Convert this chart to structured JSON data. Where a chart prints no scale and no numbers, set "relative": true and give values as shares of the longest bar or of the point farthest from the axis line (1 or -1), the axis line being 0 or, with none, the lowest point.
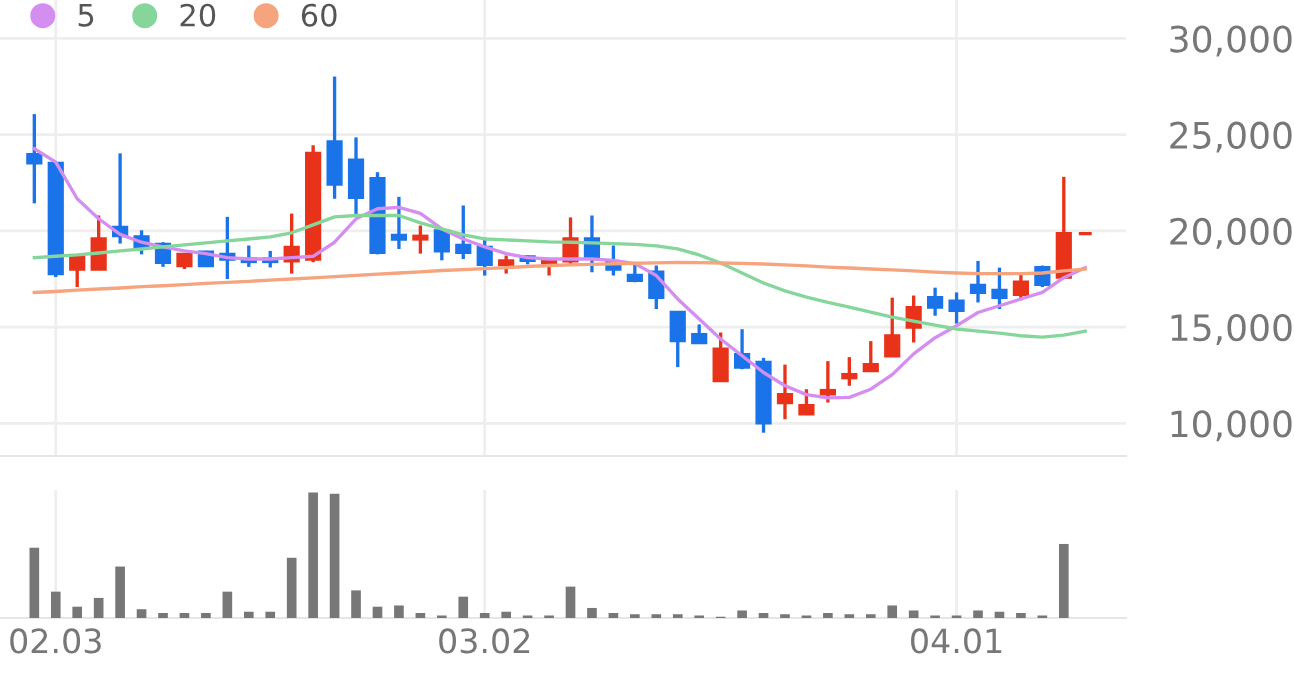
{
  "chart_data": [
    {
      "type": "candlestick",
      "categories": [
        null,
        "02.03",
        null,
        null,
        null,
        null,
        null,
        null,
        null,
        null,
        null,
        null,
        null,
        null,
        null,
        null,
        null,
        null,
        null,
        null,
        null,
        "03.02",
        null,
        null,
        null,
        null,
        null,
        null,
        null,
        null,
        null,
        null,
        null,
        null,
        null,
        null,
        null,
        null,
        null,
        null,
        null,
        null,
        null,
        "04.01",
        null,
        null,
        null,
        null,
        null,
        null
      ],
      "ohlc": [
        [
          23960,
          26070,
          21430,
          23540
        ],
        [
          23510,
          23570,
          17600,
          17780
        ],
        [
          18020,
          18650,
          17080,
          18650
        ],
        [
          18020,
          20800,
          18020,
          19580
        ],
        [
          20180,
          24030,
          19340,
          19760
        ],
        [
          19690,
          20030,
          18780,
          19140
        ],
        [
          19300,
          19410,
          18130,
          18360
        ],
        [
          18200,
          18780,
          18020,
          18780
        ],
        [
          18890,
          18960,
          18130,
          18200
        ],
        [
          18780,
          20730,
          17500,
          18540
        ],
        [
          18540,
          19240,
          18130,
          18410
        ],
        [
          18540,
          18960,
          18100,
          18410
        ],
        [
          18440,
          20900,
          17780,
          19140
        ],
        [
          18540,
          24450,
          18370,
          24030
        ],
        [
          24620,
          28020,
          21670,
          22430
        ],
        [
          23680,
          24860,
          20800,
          21740
        ],
        [
          22710,
          23050,
          18780,
          18890
        ],
        [
          19760,
          21770,
          19060,
          19580
        ],
        [
          19580,
          20280,
          18820,
          19720
        ],
        [
          20000,
          20000,
          18470,
          18960
        ],
        [
          19240,
          21320,
          18540,
          18890
        ],
        [
          19140,
          19650,
          17680,
          18260
        ],
        [
          18260,
          18720,
          17780,
          18440
        ],
        [
          18650,
          18720,
          18260,
          18470
        ],
        [
          18260,
          18540,
          17680,
          18440
        ],
        [
          18440,
          20700,
          18260,
          19580
        ],
        [
          19580,
          20800,
          17850,
          18610
        ],
        [
          18370,
          19240,
          17680,
          18020
        ],
        [
          17680,
          18370,
          17330,
          17430
        ],
        [
          17850,
          18200,
          15940,
          16540
        ],
        [
          15760,
          15760,
          12920,
          14300
        ],
        [
          14610,
          15140,
          14200,
          14200
        ],
        [
          12220,
          14720,
          12220,
          13850
        ],
        [
          13570,
          14890,
          12810,
          12920
        ],
        [
          13160,
          13400,
          9510,
          10030
        ],
        [
          11080,
          13050,
          10210,
          11490
        ],
        [
          10490,
          11770,
          10490,
          10910
        ],
        [
          11530,
          13230,
          11080,
          11700
        ],
        [
          12370,
          13440,
          11950,
          12530
        ],
        [
          12740,
          14270,
          12740,
          13050
        ],
        [
          13510,
          16530,
          13510,
          14540
        ],
        [
          15000,
          16640,
          14200,
          16010
        ],
        [
          16530,
          17050,
          15590,
          16040
        ],
        [
          16350,
          16800,
          15180,
          15870
        ],
        [
          17160,
          18440,
          16280,
          16800
        ],
        [
          16910,
          18090,
          15940,
          16540
        ],
        [
          16700,
          17850,
          16390,
          17330
        ],
        [
          18090,
          18200,
          17080,
          17220
        ],
        [
          17600,
          22810,
          17600,
          19860
        ],
        [
          19860,
          19860,
          19860,
          19860
        ]
      ],
      "colors": [
        "#1a73e8",
        "#1a73e8",
        "#e8321a",
        "#e8321a",
        "#1a73e8",
        "#1a73e8",
        "#1a73e8",
        "#e8321a",
        "#1a73e8",
        "#1a73e8",
        "#1a73e8",
        "#1a73e8",
        "#e8321a",
        "#e8321a",
        "#1a73e8",
        "#1a73e8",
        "#1a73e8",
        "#1a73e8",
        "#e8321a",
        "#1a73e8",
        "#1a73e8",
        "#1a73e8",
        "#e8321a",
        "#1a73e8",
        "#e8321a",
        "#e8321a",
        "#1a73e8",
        "#1a73e8",
        "#1a73e8",
        "#1a73e8",
        "#1a73e8",
        "#1a73e8",
        "#e8321a",
        "#1a73e8",
        "#1a73e8",
        "#e8321a",
        "#e8321a",
        "#e8321a",
        "#e8321a",
        "#e8321a",
        "#e8321a",
        "#e8321a",
        "#1a73e8",
        "#1a73e8",
        "#1a73e8",
        "#1a73e8",
        "#e8321a",
        "#1a73e8",
        "#e8321a",
        "#e8321a"
      ],
      "series": [
        {
          "type": "line",
          "name": "5",
          "color": "#d48ef0",
          "values": [
            24270,
            23570,
            21670,
            20630,
            19820,
            19410,
            19170,
            18960,
            18820,
            18610,
            18540,
            18540,
            18610,
            18680,
            19410,
            20630,
            21150,
            21220,
            20910,
            20100,
            19580,
            19170,
            18820,
            18610,
            18540,
            18540,
            18540,
            18470,
            18300,
            17680,
            16460,
            15420,
            14380,
            13510,
            12640,
            11950,
            11490,
            11320,
            11350,
            11770,
            12530,
            13610,
            14450,
            15070,
            15760,
            16110,
            16460,
            16800,
            17570,
            18090
          ]
        },
        {
          "type": "line",
          "name": "20",
          "color": "#86d69c",
          "values": [
            18610,
            18680,
            18750,
            18850,
            18960,
            19060,
            19170,
            19270,
            19380,
            19480,
            19580,
            19690,
            19900,
            20310,
            20730,
            20800,
            20800,
            20800,
            20420,
            20100,
            19790,
            19580,
            19530,
            19480,
            19430,
            19410,
            19380,
            19340,
            19300,
            19220,
            19060,
            18750,
            18330,
            17810,
            17290,
            16880,
            16560,
            16280,
            16040,
            15780,
            15520,
            15310,
            15100,
            14900,
            14790,
            14690,
            14550,
            14480,
            14580,
            14790
          ]
        },
        {
          "type": "line",
          "name": "60",
          "color": "#f5a47e",
          "values": [
            16800,
            16850,
            16920,
            16980,
            17030,
            17100,
            17150,
            17210,
            17270,
            17320,
            17380,
            17440,
            17500,
            17560,
            17620,
            17690,
            17750,
            17810,
            17870,
            17940,
            17990,
            18040,
            18090,
            18150,
            18200,
            18230,
            18260,
            18290,
            18320,
            18340,
            18360,
            18350,
            18330,
            18310,
            18280,
            18230,
            18180,
            18120,
            18070,
            18020,
            17970,
            17920,
            17860,
            17810,
            17780,
            17780,
            17780,
            17810,
            17920,
            18020
          ]
        }
      ],
      "ylim": [
        8300,
        32000
      ],
      "yticks": [
        {
          "value": 10000,
          "label": "10,000"
        },
        {
          "value": 15000,
          "label": "15,000"
        },
        {
          "value": 20000,
          "label": "20,000"
        },
        {
          "value": 25000,
          "label": "25,000"
        },
        {
          "value": 30000,
          "label": "30,000"
        }
      ],
      "grid": true,
      "legend": "top left",
      "tick_labels": "y"
    },
    {
      "type": "bar",
      "relative": true,
      "color": "#777777",
      "categories": [
        null,
        "02.03",
        null,
        null,
        null,
        null,
        null,
        null,
        null,
        null,
        null,
        null,
        null,
        null,
        null,
        null,
        null,
        null,
        null,
        null,
        null,
        "03.02",
        null,
        null,
        null,
        null,
        null,
        null,
        null,
        null,
        null,
        null,
        null,
        null,
        null,
        null,
        null,
        null,
        null,
        null,
        null,
        null,
        null,
        "04.01",
        null,
        null,
        null,
        null,
        null,
        null
      ],
      "values": [
        0.56,
        0.21,
        0.09,
        0.16,
        0.41,
        0.07,
        0.04,
        0.04,
        0.04,
        0.21,
        0.05,
        0.05,
        0.48,
        1,
        0.99,
        0.22,
        0.09,
        0.1,
        0.04,
        0.02,
        0.17,
        0.04,
        0.05,
        0.02,
        0.02,
        0.25,
        0.08,
        0.04,
        0.03,
        0.03,
        0.03,
        0.02,
        0.01,
        0.06,
        0.04,
        0.03,
        0.02,
        0.04,
        0.03,
        0.03,
        0.1,
        0.06,
        0.02,
        0.02,
        0.06,
        0.05,
        0.04,
        0.02,
        0.59,
        0
      ],
      "grid": "x",
      "tick_labels": "x"
    }
  ]
}
